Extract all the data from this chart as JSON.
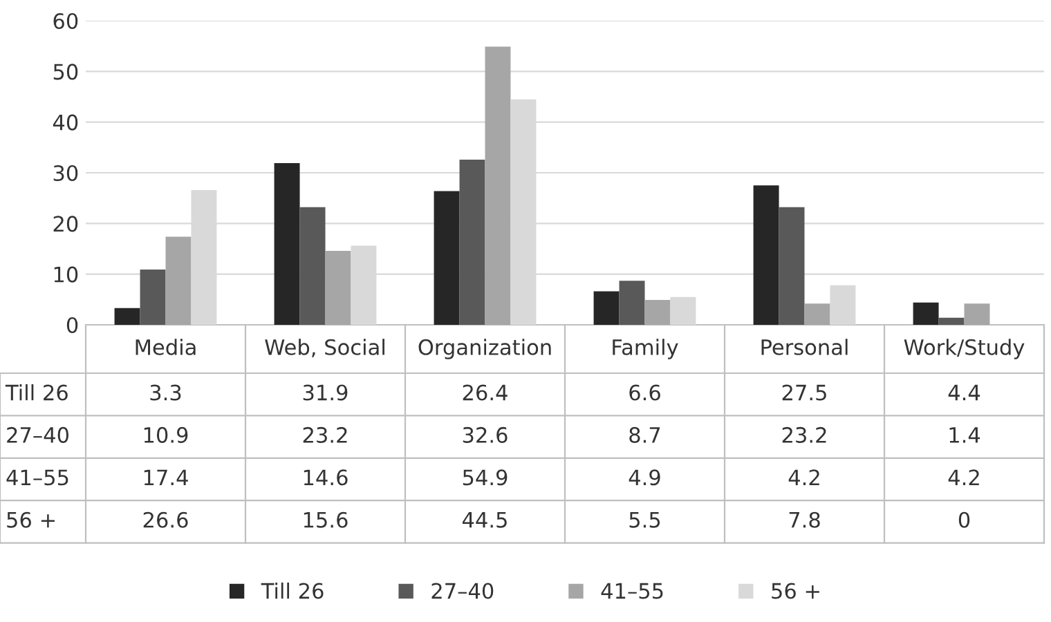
{
  "chart_data": {
    "type": "bar",
    "categories": [
      "Media",
      "Web, Social",
      "Organization",
      "Family",
      "Personal",
      "Work/Study"
    ],
    "series": [
      {
        "name": "Till 26",
        "color": "#262626",
        "values": [
          3.3,
          31.9,
          26.4,
          6.6,
          27.5,
          4.4
        ]
      },
      {
        "name": "27–40",
        "color": "#595959",
        "values": [
          10.9,
          23.2,
          32.6,
          8.7,
          23.2,
          1.4
        ]
      },
      {
        "name": "41–55",
        "color": "#a6a6a6",
        "values": [
          17.4,
          14.6,
          54.9,
          4.9,
          4.2,
          4.2
        ]
      },
      {
        "name": "56 +",
        "color": "#d9d9d9",
        "values": [
          26.6,
          15.6,
          44.5,
          5.5,
          7.8,
          0
        ]
      }
    ],
    "ylim": [
      0,
      60
    ],
    "yticks": [
      0,
      10,
      20,
      30,
      40,
      50,
      60
    ],
    "grid": "y",
    "legend": "bottom",
    "data_labels": true
  }
}
